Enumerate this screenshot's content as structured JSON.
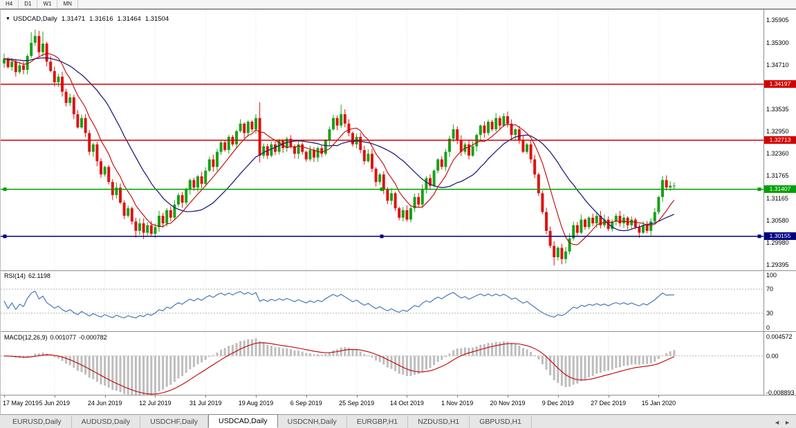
{
  "toolbar": {
    "timeframes": [
      "H4",
      "D1",
      "W1",
      "MN"
    ]
  },
  "chart": {
    "info": {
      "dropdown_icon": "▼",
      "symbol_period": "USDCAD,Daily",
      "open": "1.31471",
      "high": "1.31616",
      "low": "1.31464",
      "close": "1.31504"
    },
    "price_range": {
      "min": 1.2925,
      "max": 1.3618
    },
    "colors": {
      "up": "#17a317",
      "down": "#e01212",
      "ma_fast": "#c00000",
      "ma_slow": "#1f1f7a"
    },
    "price_axis": {
      "ticks": [
        "1.35905",
        "1.35300",
        "1.34710",
        "1.33535",
        "1.32950",
        "1.32360",
        "1.31765",
        "1.31165",
        "1.30580",
        "1.29980",
        "1.29395"
      ]
    },
    "hlines": [
      {
        "price": 1.34197,
        "label": "1.34197",
        "color": "#d40000",
        "handles": false
      },
      {
        "price": 1.32713,
        "label": "1.32713",
        "color": "#d40000",
        "handles": false
      },
      {
        "price": 1.31407,
        "label": "1.31407",
        "color": "#00a000",
        "handles": true
      },
      {
        "price": 1.30155,
        "label": "1.30155",
        "color": "#000080",
        "handles": true
      }
    ]
  },
  "rsi": {
    "label": "RSI(14)",
    "value": "62.1198",
    "color": "#4878b8",
    "levels": [
      70,
      30
    ],
    "ticks": [
      {
        "label": "100",
        "value": 100
      },
      {
        "label": "70",
        "value": 70
      },
      {
        "label": "30",
        "value": 30
      },
      {
        "label": "0",
        "value": 0
      }
    ]
  },
  "macd": {
    "label": "MACD(12,26,9)",
    "value_main": "0.001077",
    "value_signal": "-0.000782",
    "hist_color": "#bdbdbd",
    "signal_color": "#c00000",
    "scale": {
      "min": -0.0094,
      "max": 0.0058
    },
    "ticks": [
      {
        "label": "0.004572",
        "value": 0.004572
      },
      {
        "label": "0.00",
        "value": 0
      },
      {
        "label": "-0.008893",
        "value": -0.008893
      }
    ]
  },
  "time_axis": {
    "labels": [
      "17 May 2019",
      "5 Jun 2019",
      "24 Jun 2019",
      "12 Jul 2019",
      "31 Jul 2019",
      "19 Aug 2019",
      "6 Sep 2019",
      "25 Sep 2019",
      "14 Oct 2019",
      "1 Nov 2019",
      "20 Nov 2019",
      "9 Dec 2019",
      "27 Dec 2019",
      "15 Jan 2020"
    ]
  },
  "tabs": {
    "active_index": 3,
    "items": [
      "EURUSD,Daily",
      "AUDUSD,Daily",
      "USDCHF,Daily",
      "USDCAD,Daily",
      "USDCNH,Daily",
      "EURGBP,H1",
      "NZDUSD,H1",
      "GBPUSD,H1"
    ],
    "scroll_left_icon": "◄",
    "scroll_right_icon": "►"
  },
  "chart_data": {
    "type": "candlestick",
    "label_indices": [
      0,
      13,
      26,
      39,
      52,
      65,
      78,
      91,
      104,
      117,
      130,
      143,
      156,
      169
    ],
    "first_open": 1.3475,
    "ma_fast_period": 8,
    "ma_slow_period": 21,
    "closes": [
      1.3488,
      1.3465,
      1.348,
      1.3452,
      1.347,
      1.3458,
      1.3495,
      1.353,
      1.3548,
      1.3505,
      1.3528,
      1.348,
      1.3455,
      1.3425,
      1.344,
      1.34,
      1.337,
      1.3385,
      1.334,
      1.3305,
      1.333,
      1.329,
      1.324,
      1.326,
      1.3215,
      1.318,
      1.32,
      1.316,
      1.3125,
      1.3145,
      1.3105,
      1.307,
      1.309,
      1.3055,
      1.303,
      1.305,
      1.3025,
      1.3045,
      1.3022,
      1.304,
      1.307,
      1.305,
      1.3085,
      1.3065,
      1.31,
      1.3125,
      1.3105,
      1.314,
      1.3165,
      1.3145,
      1.3175,
      1.3155,
      1.319,
      1.322,
      1.32,
      1.324,
      1.3265,
      1.3245,
      1.328,
      1.326,
      1.3295,
      1.3315,
      1.329,
      1.332,
      1.33,
      1.333,
      1.323,
      1.3255,
      1.323,
      1.326,
      1.324,
      1.327,
      1.325,
      1.3275,
      1.3255,
      1.3235,
      1.326,
      1.324,
      1.322,
      1.3245,
      1.3225,
      1.325,
      1.3235,
      1.327,
      1.33,
      1.333,
      1.331,
      1.334,
      1.3315,
      1.329,
      1.326,
      1.328,
      1.3245,
      1.3215,
      1.3235,
      1.3195,
      1.316,
      1.318,
      1.314,
      1.311,
      1.313,
      1.309,
      1.3065,
      1.3085,
      1.306,
      1.309,
      1.312,
      1.31,
      1.314,
      1.317,
      1.315,
      1.319,
      1.322,
      1.32,
      1.324,
      1.3275,
      1.33,
      1.327,
      1.324,
      1.326,
      1.323,
      1.3255,
      1.3285,
      1.331,
      1.329,
      1.332,
      1.33,
      1.333,
      1.331,
      1.3335,
      1.3315,
      1.3285,
      1.33,
      1.327,
      1.324,
      1.326,
      1.322,
      1.318,
      1.313,
      1.308,
      1.303,
      1.299,
      1.296,
      1.2985,
      1.2955,
      1.2975,
      1.301,
      1.3045,
      1.3025,
      1.306,
      1.304,
      1.3065,
      1.305,
      1.307,
      1.3045,
      1.306,
      1.3035,
      1.3055,
      1.307,
      1.305,
      1.3065,
      1.3045,
      1.306,
      1.304,
      1.3025,
      1.3045,
      1.303,
      1.3055,
      1.308,
      1.312,
      1.3165,
      1.3145,
      1.315,
      1.31504
    ],
    "wick_overrides": {
      "7": {
        "h": 1.3558
      },
      "8": {
        "h": 1.3565
      },
      "10": {
        "h": 1.356
      },
      "34": {
        "l": 1.3012
      },
      "36": {
        "l": 1.3008
      },
      "38": {
        "l": 1.3014
      },
      "66": {
        "h": 1.3372,
        "l": 1.3212
      },
      "87": {
        "h": 1.3365
      },
      "142": {
        "l": 1.2938
      },
      "144": {
        "l": 1.2941
      },
      "170": {
        "h": 1.3176
      }
    }
  }
}
